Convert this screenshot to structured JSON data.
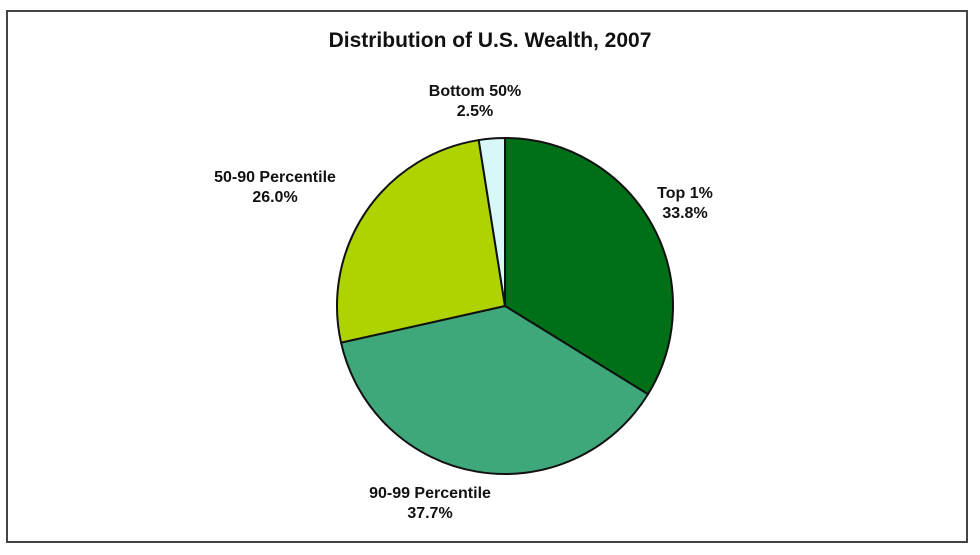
{
  "chart_data": {
    "type": "pie",
    "title": "Distribution of U.S. Wealth, 2007",
    "categories": [
      "Top 1%",
      "90-99 Percentile",
      "50-90 Percentile",
      "Bottom 50%"
    ],
    "values": [
      33.8,
      37.7,
      26.0,
      2.5
    ],
    "value_labels": [
      "33.8%",
      "37.7%",
      "26.0%",
      "2.5%"
    ],
    "colors": [
      "#007018",
      "#3fa87a",
      "#add400",
      "#d8f8f8"
    ],
    "start_angle": "12 o'clock",
    "direction": "clockwise",
    "legend": "none (slice labels)"
  },
  "labels": {
    "top1": {
      "name": "Top 1%",
      "value": "33.8%"
    },
    "p90_99": {
      "name": "90-99 Percentile",
      "value": "37.7%"
    },
    "p50_90": {
      "name": "50-90 Percentile",
      "value": "26.0%"
    },
    "bottom50": {
      "name": "Bottom 50%",
      "value": "2.5%"
    }
  }
}
